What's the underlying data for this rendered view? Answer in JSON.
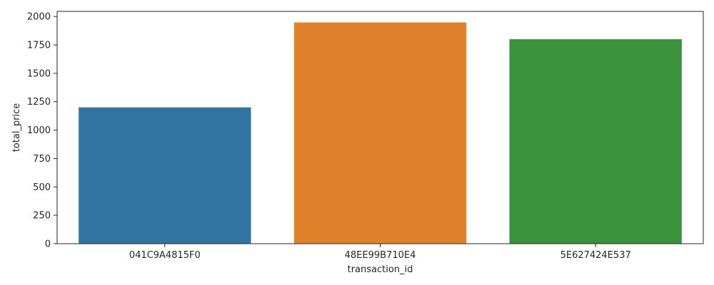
{
  "chart_data": {
    "type": "bar",
    "title": "",
    "xlabel": "transaction_id",
    "ylabel": "total_price",
    "categories": [
      "041C9A4815F0",
      "48EE99B710E4",
      "5E627424E537"
    ],
    "values": [
      1200,
      1948,
      1800
    ],
    "ylim": [
      0,
      2045
    ],
    "yticks": [
      0,
      250,
      500,
      750,
      1000,
      1250,
      1500,
      1750,
      2000
    ],
    "grid": false,
    "legend": "none",
    "colors": [
      "#3274a1",
      "#e1812c",
      "#3a923a"
    ]
  }
}
